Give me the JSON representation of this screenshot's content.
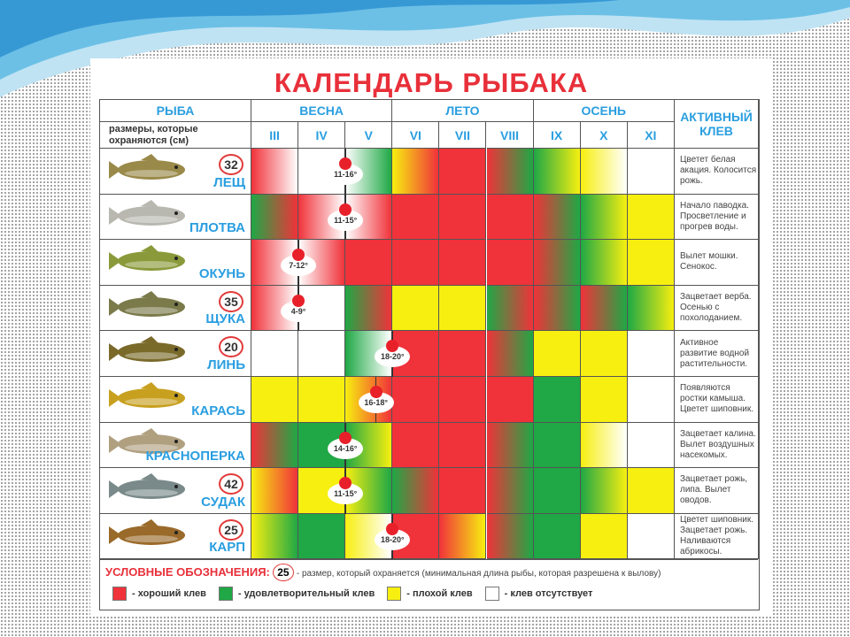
{
  "title": "КАЛЕНДАРЬ РЫБАКА",
  "header": {
    "fish": "РЫБА",
    "sizes": "размеры, которые охраняются (см)",
    "active": "АКТИВНЫЙ КЛЕВ",
    "seasons": [
      {
        "label": "ВЕСНА",
        "span": 3
      },
      {
        "label": "ЛЕТО",
        "span": 3
      },
      {
        "label": "ОСЕНЬ",
        "span": 3
      }
    ],
    "months": [
      "III",
      "IV",
      "V",
      "VI",
      "VII",
      "VIII",
      "IX",
      "X",
      "XI"
    ]
  },
  "colors": {
    "r": "#f0323a",
    "g": "#1fa845",
    "y": "#f7ef10",
    "w": "#ffffff"
  },
  "rows": [
    {
      "name": "ЛЕЩ",
      "size": "32",
      "temp": "11-16°",
      "spawn_month_pos": 2.0,
      "active": "Цветет белая акация. Колосится рожь.",
      "months": [
        [
          "r",
          "w"
        ],
        [
          "w",
          "w"
        ],
        [
          "w",
          "g"
        ],
        [
          "y",
          "r"
        ],
        [
          "r",
          "r"
        ],
        [
          "r",
          "g"
        ],
        [
          "g",
          "y"
        ],
        [
          "y",
          "w"
        ],
        [
          "w",
          "w"
        ]
      ],
      "fish_color": "#9a8a4a"
    },
    {
      "name": "ПЛОТВА",
      "size": "",
      "temp": "11-15°",
      "spawn_month_pos": 2.0,
      "active": "Начало паводка. Просветление и прогрев воды.",
      "months": [
        [
          "g",
          "r"
        ],
        [
          "r",
          "w"
        ],
        [
          "w",
          "r"
        ],
        [
          "r",
          "r"
        ],
        [
          "r",
          "r"
        ],
        [
          "r",
          "r"
        ],
        [
          "r",
          "g"
        ],
        [
          "g",
          "y"
        ],
        [
          "y",
          "y"
        ]
      ],
      "fish_color": "#b8b8b0"
    },
    {
      "name": "ОКУНЬ",
      "size": "",
      "temp": "7-12°",
      "spawn_month_pos": 1.0,
      "active": "Вылет мошки. Сенокос.",
      "months": [
        [
          "r",
          "w"
        ],
        [
          "w",
          "r"
        ],
        [
          "r",
          "r"
        ],
        [
          "r",
          "r"
        ],
        [
          "r",
          "r"
        ],
        [
          "r",
          "r"
        ],
        [
          "r",
          "g"
        ],
        [
          "g",
          "y"
        ],
        [
          "y",
          "y"
        ]
      ],
      "fish_color": "#8a9a3a"
    },
    {
      "name": "ЩУКА",
      "size": "35",
      "temp": "4-9°",
      "spawn_month_pos": 1.0,
      "active": "Зацветает верба. Осенью с похолоданием.",
      "months": [
        [
          "r",
          "w"
        ],
        [
          "w",
          "w"
        ],
        [
          "g",
          "r"
        ],
        [
          "y",
          "y"
        ],
        [
          "y",
          "y"
        ],
        [
          "g",
          "r"
        ],
        [
          "r",
          "g"
        ],
        [
          "r",
          "g"
        ],
        [
          "g",
          "y"
        ]
      ],
      "fish_color": "#7a7a4a"
    },
    {
      "name": "ЛИНЬ",
      "size": "20",
      "temp": "18-20°",
      "spawn_month_pos": 3.0,
      "active": "Активное развитие водной растительности.",
      "months": [
        [
          "w",
          "w"
        ],
        [
          "w",
          "w"
        ],
        [
          "g",
          "w"
        ],
        [
          "r",
          "r"
        ],
        [
          "r",
          "r"
        ],
        [
          "r",
          "g"
        ],
        [
          "y",
          "y"
        ],
        [
          "y",
          "y"
        ],
        [
          "w",
          "w"
        ]
      ],
      "fish_color": "#7a6a2a"
    },
    {
      "name": "КАРАСЬ",
      "size": "",
      "temp": "16-18°",
      "spawn_month_pos": 2.65,
      "active": "Появляются ростки камыша. Цветет шиповник.",
      "months": [
        [
          "y",
          "y"
        ],
        [
          "y",
          "y"
        ],
        [
          "y",
          "r"
        ],
        [
          "r",
          "r"
        ],
        [
          "r",
          "r"
        ],
        [
          "r",
          "r"
        ],
        [
          "g",
          "g"
        ],
        [
          "y",
          "y"
        ],
        [
          "w",
          "w"
        ]
      ],
      "fish_color": "#c8a020"
    },
    {
      "name": "КРАСНОПЕРКА",
      "size": "",
      "temp": "14-16°",
      "spawn_month_pos": 2.0,
      "active": "Зацветает калина. Вылет воздушных насекомых.",
      "months": [
        [
          "r",
          "g"
        ],
        [
          "g",
          "g"
        ],
        [
          "g",
          "y"
        ],
        [
          "r",
          "r"
        ],
        [
          "r",
          "r"
        ],
        [
          "r",
          "g"
        ],
        [
          "g",
          "g"
        ],
        [
          "y",
          "w"
        ],
        [
          "w",
          "w"
        ]
      ],
      "fish_color": "#b0a080"
    },
    {
      "name": "СУДАК",
      "size": "42",
      "temp": "11-15°",
      "spawn_month_pos": 2.0,
      "active": "Зацветает рожь, липа. Вылет оводов.",
      "months": [
        [
          "y",
          "r"
        ],
        [
          "y",
          "y"
        ],
        [
          "y",
          "g"
        ],
        [
          "g",
          "r"
        ],
        [
          "r",
          "r"
        ],
        [
          "r",
          "g"
        ],
        [
          "g",
          "g"
        ],
        [
          "g",
          "y"
        ],
        [
          "y",
          "y"
        ]
      ],
      "fish_color": "#7a8a8a"
    },
    {
      "name": "КАРП",
      "size": "25",
      "temp": "18-20°",
      "spawn_month_pos": 3.0,
      "active": "Цветет шиповник. Зацветает рожь. Наливаются абрикосы.",
      "months": [
        [
          "y",
          "g"
        ],
        [
          "g",
          "g"
        ],
        [
          "y",
          "w"
        ],
        [
          "r",
          "r"
        ],
        [
          "r",
          "y"
        ],
        [
          "r",
          "g"
        ],
        [
          "g",
          "g"
        ],
        [
          "y",
          "y"
        ],
        [
          "w",
          "w"
        ]
      ],
      "fish_color": "#9a6a2a"
    }
  ],
  "legend": {
    "title": "УСЛОВНЫЕ ОБОЗНАЧЕНИЯ:",
    "size_example": "25",
    "size_note": "- размер, который охраняется (минимальная длина рыбы, которая разрешена к вылову)",
    "items": [
      {
        "color": "r",
        "label": "- хороший клев"
      },
      {
        "color": "g",
        "label": "- удовлетворительный клев"
      },
      {
        "color": "y",
        "label": "- плохой клев"
      },
      {
        "color": "w",
        "label": "- клев отсутствует"
      }
    ]
  }
}
